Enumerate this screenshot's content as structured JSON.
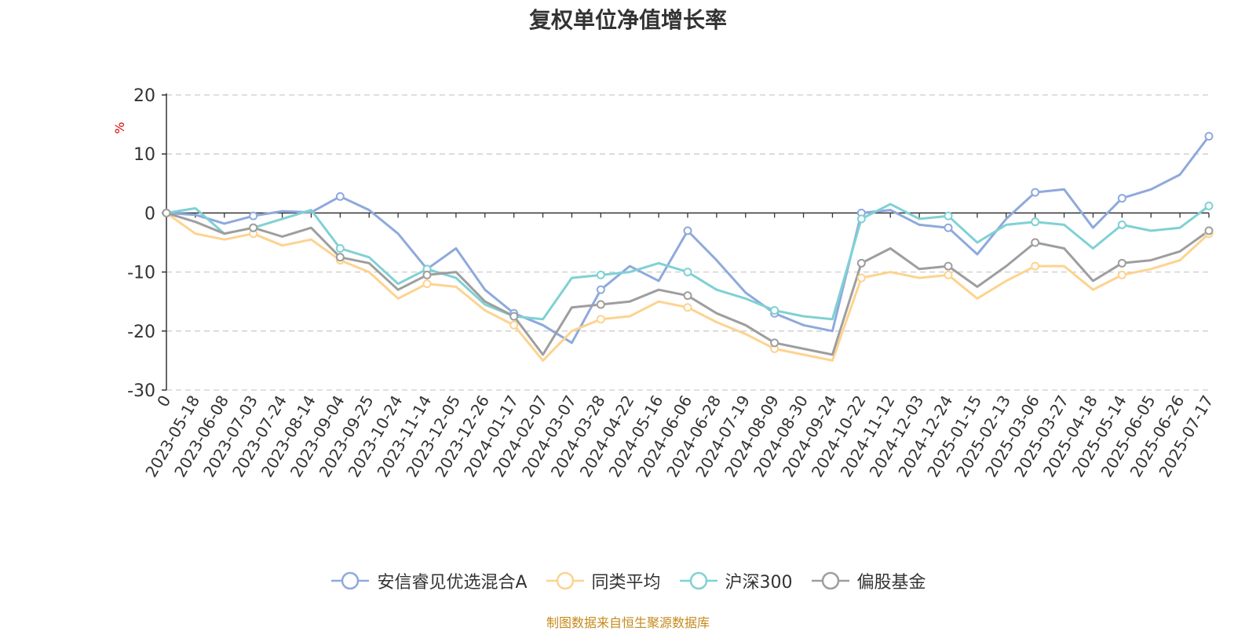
{
  "title": "复权单位净值增长率",
  "source_note": "制图数据来自恒生聚源数据库",
  "chart_data": {
    "type": "line",
    "title": "复权单位净值增长率",
    "xlabel": "",
    "ylabel": "%",
    "ylim": [
      -30,
      20
    ],
    "yticks": [
      20,
      10,
      0,
      -10,
      -20,
      -30
    ],
    "grid": true,
    "legend_position": "bottom",
    "x_tick_labels": [
      "0",
      "2023-05-18",
      "2023-06-08",
      "2023-07-03",
      "2023-07-24",
      "2023-08-14",
      "2023-09-04",
      "2023-09-25",
      "2023-10-24",
      "2023-11-14",
      "2023-12-05",
      "2023-12-26",
      "2024-01-17",
      "2024-02-07",
      "2024-03-07",
      "2024-03-28",
      "2024-04-22",
      "2024-05-16",
      "2024-06-06",
      "2024-06-28",
      "2024-07-19",
      "2024-08-09",
      "2024-08-30",
      "2024-09-24",
      "2024-10-22",
      "2024-11-12",
      "2024-12-03",
      "2024-12-24",
      "2025-01-15",
      "2025-02-13",
      "2025-03-06",
      "2025-03-27",
      "2025-04-18",
      "2025-05-14",
      "2025-06-05",
      "2025-06-26",
      "2025-07-17"
    ],
    "series": [
      {
        "name": "安信睿见优选混合A",
        "color": "#8fa9dc",
        "values": [
          0,
          -0.3,
          -1.8,
          -0.5,
          0.3,
          0.1,
          2.8,
          0.5,
          -3.5,
          -9.5,
          -6,
          -13,
          -17,
          -19,
          -22,
          -13,
          -9,
          -11.5,
          -3,
          -8,
          -13.5,
          -17,
          -19,
          -20,
          0,
          0.5,
          -2,
          -2.5,
          -7,
          -1,
          3.5,
          4,
          -2.5,
          2.5,
          4,
          6.5,
          13
        ]
      },
      {
        "name": "同类平均",
        "color": "#fdd38f",
        "values": [
          0,
          -3.5,
          -4.5,
          -3.5,
          -5.5,
          -4.5,
          -8,
          -10,
          -14.5,
          -12,
          -12.5,
          -16.5,
          -19,
          -25,
          -20,
          -18,
          -17.5,
          -15,
          -16,
          -18.5,
          -20.5,
          -23,
          -24,
          -25,
          -11,
          -10,
          -11,
          -10.5,
          -14.5,
          -11.5,
          -9,
          -9,
          -13,
          -10.5,
          -9.5,
          -8,
          -3.5
        ]
      },
      {
        "name": "沪深300",
        "color": "#7fd1d4",
        "values": [
          0,
          0.8,
          -3.5,
          -2.5,
          -1,
          0.5,
          -6,
          -7.5,
          -12,
          -9.5,
          -11,
          -15.5,
          -17.5,
          -18,
          -11,
          -10.5,
          -10,
          -8.5,
          -10,
          -13,
          -14.5,
          -16.5,
          -17.5,
          -18,
          -1,
          1.5,
          -1,
          -0.5,
          -5,
          -2,
          -1.5,
          -2,
          -6,
          -2,
          -3,
          -2.5,
          1.2
        ]
      },
      {
        "name": "偏股基金",
        "color": "#9e9e9e",
        "values": [
          0,
          -1.5,
          -3.5,
          -2.5,
          -4,
          -2.5,
          -7.5,
          -8.5,
          -13,
          -10.5,
          -10,
          -15,
          -17.5,
          -24,
          -16,
          -15.5,
          -15,
          -13,
          -14,
          -17,
          -19,
          -22,
          -23,
          -24,
          -8.5,
          -6,
          -9.5,
          -9,
          -12.5,
          -9,
          -5,
          -6,
          -11.5,
          -8.5,
          -8,
          -6.5,
          -3
        ]
      }
    ]
  }
}
